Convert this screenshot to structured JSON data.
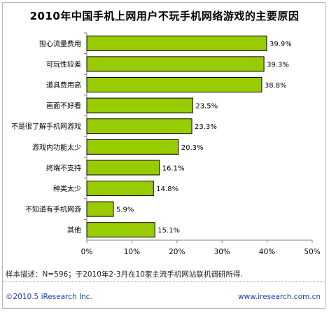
{
  "chart_data": {
    "type": "bar",
    "orientation": "horizontal",
    "title": "2010年中国手机上网用户不玩手机网络游戏的主要原因",
    "categories": [
      "担心流量费用",
      "可玩性较差",
      "道具费用高",
      "画面不好看",
      "不是很了解手机网游戏",
      "游戏内功能太少",
      "终端不支持",
      "种类太少",
      "不知道有手机网游",
      "其他"
    ],
    "values": [
      39.9,
      39.3,
      38.8,
      23.5,
      23.3,
      20.3,
      16.1,
      14.8,
      5.9,
      15.1
    ],
    "value_labels": [
      "39.9%",
      "39.3%",
      "38.8%",
      "23.5%",
      "23.3%",
      "20.3%",
      "16.1%",
      "14.8%",
      "5.9%",
      "15.1%"
    ],
    "x_ticks": [
      0,
      10,
      20,
      30,
      40,
      50
    ],
    "x_tick_labels": [
      "0%",
      "10%",
      "20%",
      "30%",
      "40%",
      "50%"
    ],
    "xlim": [
      0,
      50
    ],
    "grid": false,
    "legend": "none",
    "colors": {
      "bar_fill": "#99cc00",
      "bar_stroke": "#000000"
    }
  },
  "footnote": "样本描述：N=596；于2010年2-3月在10家主流手机网站联机调研所得.",
  "copyright": "©2010.5 iResearch Inc.",
  "website": "www.iresearch.com.cn"
}
